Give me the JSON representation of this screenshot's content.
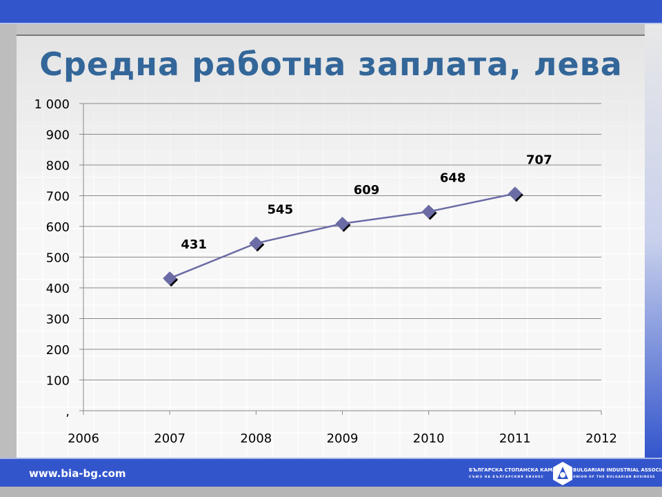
{
  "slide": {
    "title": "Средна работна заплата, лева",
    "footer_url": "www.bia-bg.com",
    "logo": {
      "bg_name": "БЪЛГАРСКА СТОПАНСКА КАМАРА",
      "bg_sub": "СЪЮЗ НА БЪЛГАРСКИЯ БИЗНЕС",
      "en_name": "BULGARIAN INDUSTRIAL ASSOCIATION",
      "en_sub": "UNION OF THE BULGARIAN BUSINESS"
    }
  },
  "chart_data": {
    "type": "line",
    "title": "Средна работна заплата, лева",
    "xlabel": "",
    "ylabel": "",
    "x": [
      2007,
      2008,
      2009,
      2010,
      2011
    ],
    "series": [
      {
        "values": [
          431,
          545,
          609,
          648,
          707
        ],
        "color": "#6b6ba6",
        "marker": "diamond"
      }
    ],
    "data_labels": [
      "431",
      "545",
      "609",
      "648",
      "707"
    ],
    "xlim": [
      2006,
      2012
    ],
    "ylim": [
      0,
      1000
    ],
    "x_ticks": [
      "2006",
      "2007",
      "2008",
      "2009",
      "2010",
      "2011",
      "2012"
    ],
    "y_ticks": [
      ",",
      "100",
      "200",
      "300",
      "400",
      "500",
      "600",
      "700",
      "800",
      "900",
      "1 000"
    ],
    "grid": "horizontal",
    "legend": "none"
  }
}
